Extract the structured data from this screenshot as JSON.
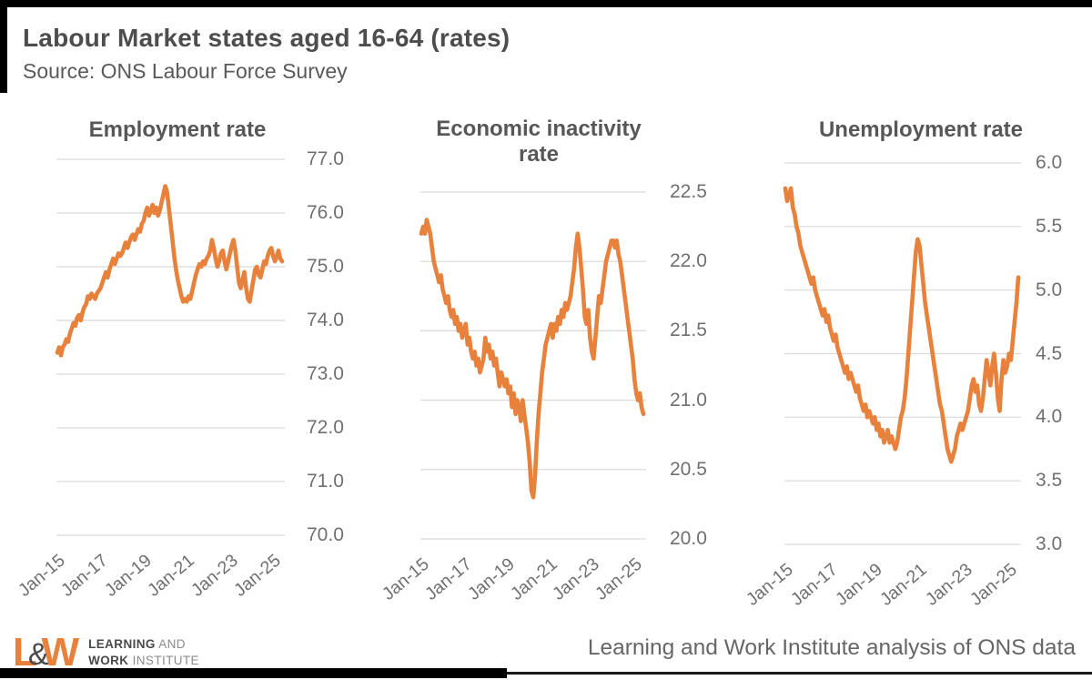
{
  "header": {
    "title": "Labour Market states aged 16-64 (rates)",
    "subtitle": "Source: ONS Labour Force Survey"
  },
  "colors": {
    "line": "#E8813B",
    "grid": "#D9D9D9",
    "title_text": "#4d4d4d",
    "tick_text": "#707070"
  },
  "footer": {
    "logo": {
      "l": "L",
      "amp": "&",
      "w": "W",
      "line1_strong": "LEARNING",
      "line1_light": "AND",
      "line2_strong": "WORK",
      "line2_light": "INSTITUTE"
    },
    "attribution": "Learning and Work Institute analysis of ONS data"
  },
  "chart_data": [
    {
      "type": "line",
      "title": "Employment rate",
      "series_color": "#E8813B",
      "grid": true,
      "legend": "none",
      "y_axis_side": "right",
      "ylim": [
        70.0,
        77.0
      ],
      "y_tick_labels": [
        "77.0",
        "76.0",
        "75.0",
        "74.0",
        "73.0",
        "72.0",
        "71.0",
        "70.0"
      ],
      "x_range": {
        "start": "Jan-2015",
        "end": "Jun-2025",
        "interval": "monthly"
      },
      "x_tick_labels": [
        "Jan-15",
        "Jan-17",
        "Jan-19",
        "Jan-21",
        "Jan-23",
        "Jan-25"
      ],
      "x_tick_positions": [
        0,
        24,
        48,
        72,
        96,
        120
      ],
      "values": [
        73.4,
        73.5,
        73.35,
        73.5,
        73.55,
        73.65,
        73.6,
        73.75,
        73.85,
        73.95,
        73.9,
        74.05,
        74.1,
        74.0,
        74.15,
        74.25,
        74.3,
        74.45,
        74.4,
        74.5,
        74.45,
        74.4,
        74.5,
        74.55,
        74.6,
        74.7,
        74.8,
        74.9,
        74.8,
        74.95,
        75.05,
        75.15,
        75.05,
        75.15,
        75.25,
        75.2,
        75.25,
        75.35,
        75.45,
        75.35,
        75.45,
        75.55,
        75.6,
        75.5,
        75.6,
        75.7,
        75.65,
        75.8,
        75.85,
        76.0,
        76.1,
        75.95,
        76.05,
        76.15,
        76.0,
        76.1,
        75.95,
        76.05,
        76.2,
        76.35,
        76.5,
        76.4,
        76.1,
        75.8,
        75.5,
        75.2,
        74.95,
        74.75,
        74.6,
        74.45,
        74.35,
        74.4,
        74.35,
        74.45,
        74.4,
        74.55,
        74.7,
        74.85,
        74.95,
        75.05,
        75.0,
        75.1,
        75.05,
        75.15,
        75.2,
        75.3,
        75.5,
        75.35,
        75.15,
        75.0,
        75.1,
        75.25,
        75.3,
        75.1,
        74.95,
        75.1,
        75.25,
        75.4,
        75.5,
        75.3,
        75.0,
        74.7,
        74.6,
        74.75,
        74.9,
        74.6,
        74.4,
        74.35,
        74.55,
        74.75,
        74.95,
        75.0,
        74.85,
        74.8,
        74.95,
        75.1,
        75.05,
        75.2,
        75.3,
        75.35,
        75.2,
        75.1,
        75.2,
        75.3,
        75.15,
        75.1
      ]
    },
    {
      "type": "line",
      "title": "Economic inactivity rate",
      "series_color": "#E8813B",
      "grid": true,
      "legend": "none",
      "y_axis_side": "right",
      "ylim": [
        20.0,
        22.5
      ],
      "y_tick_labels": [
        "22.5",
        "22.0",
        "21.5",
        "21.0",
        "20.5",
        "20.0"
      ],
      "x_range": {
        "start": "Jan-2015",
        "end": "Jun-2025",
        "interval": "monthly"
      },
      "x_tick_labels": [
        "Jan-15",
        "Jan-17",
        "Jan-19",
        "Jan-21",
        "Jan-23",
        "Jan-25"
      ],
      "x_tick_positions": [
        0,
        24,
        48,
        72,
        96,
        120
      ],
      "values": [
        22.2,
        22.25,
        22.2,
        22.3,
        22.25,
        22.2,
        22.1,
        22.0,
        21.95,
        21.9,
        21.85,
        21.9,
        21.8,
        21.75,
        21.7,
        21.75,
        21.65,
        21.6,
        21.65,
        21.55,
        21.6,
        21.5,
        21.55,
        21.45,
        21.5,
        21.55,
        21.4,
        21.45,
        21.35,
        21.3,
        21.35,
        21.25,
        21.3,
        21.2,
        21.25,
        21.3,
        21.45,
        21.35,
        21.4,
        21.3,
        21.35,
        21.25,
        21.3,
        21.2,
        21.1,
        21.2,
        21.15,
        21.1,
        21.15,
        21.05,
        21.1,
        20.95,
        21.05,
        20.9,
        21.0,
        20.95,
        20.85,
        21.0,
        20.9,
        20.8,
        20.7,
        20.55,
        20.35,
        20.3,
        20.45,
        20.7,
        20.9,
        21.05,
        21.2,
        21.3,
        21.4,
        21.45,
        21.5,
        21.55,
        21.45,
        21.55,
        21.5,
        21.6,
        21.55,
        21.65,
        21.6,
        21.7,
        21.65,
        21.7,
        21.75,
        21.85,
        21.95,
        22.1,
        22.2,
        22.1,
        21.95,
        21.8,
        21.6,
        21.55,
        21.65,
        21.45,
        21.35,
        21.3,
        21.45,
        21.6,
        21.75,
        21.7,
        21.8,
        21.9,
        22.0,
        22.05,
        22.1,
        22.15,
        22.15,
        22.1,
        22.15,
        22.05,
        22.0,
        21.9,
        21.8,
        21.7,
        21.6,
        21.5,
        21.4,
        21.3,
        21.15,
        21.05,
        21.0,
        21.05,
        20.95,
        20.9
      ]
    },
    {
      "type": "line",
      "title": "Unemployment rate",
      "series_color": "#E8813B",
      "grid": true,
      "legend": "none",
      "y_axis_side": "right",
      "ylim": [
        3.0,
        6.0
      ],
      "y_tick_labels": [
        "6.0",
        "5.5",
        "5.0",
        "4.5",
        "4.0",
        "3.5",
        "3.0"
      ],
      "x_range": {
        "start": "Jan-2015",
        "end": "Jun-2025",
        "interval": "monthly"
      },
      "x_tick_labels": [
        "Jan-15",
        "Jan-17",
        "Jan-19",
        "Jan-21",
        "Jan-23",
        "Jan-25"
      ],
      "x_tick_positions": [
        0,
        24,
        48,
        72,
        96,
        120
      ],
      "values": [
        5.8,
        5.7,
        5.75,
        5.8,
        5.65,
        5.6,
        5.5,
        5.45,
        5.35,
        5.3,
        5.25,
        5.2,
        5.15,
        5.1,
        5.05,
        5.1,
        5.0,
        4.95,
        4.9,
        4.85,
        4.8,
        4.85,
        4.75,
        4.8,
        4.7,
        4.65,
        4.6,
        4.65,
        4.55,
        4.5,
        4.45,
        4.4,
        4.35,
        4.4,
        4.3,
        4.35,
        4.3,
        4.25,
        4.2,
        4.25,
        4.15,
        4.1,
        4.05,
        4.1,
        4.0,
        4.05,
        4.0,
        3.95,
        4.0,
        3.9,
        3.95,
        3.85,
        3.9,
        3.8,
        3.85,
        3.9,
        3.8,
        3.85,
        3.8,
        3.75,
        3.8,
        3.9,
        4.0,
        4.05,
        4.15,
        4.3,
        4.5,
        4.7,
        4.9,
        5.1,
        5.3,
        5.4,
        5.35,
        5.2,
        5.05,
        4.9,
        4.8,
        4.7,
        4.6,
        4.5,
        4.4,
        4.3,
        4.2,
        4.1,
        4.05,
        3.95,
        3.85,
        3.75,
        3.7,
        3.65,
        3.7,
        3.75,
        3.85,
        3.9,
        3.95,
        3.9,
        3.95,
        4.0,
        4.05,
        4.15,
        4.25,
        4.3,
        4.2,
        4.25,
        4.1,
        4.05,
        4.15,
        4.3,
        4.45,
        4.35,
        4.25,
        4.4,
        4.5,
        4.35,
        4.15,
        4.05,
        4.3,
        4.45,
        4.35,
        4.4,
        4.5,
        4.45,
        4.6,
        4.75,
        4.9,
        5.1
      ]
    }
  ]
}
